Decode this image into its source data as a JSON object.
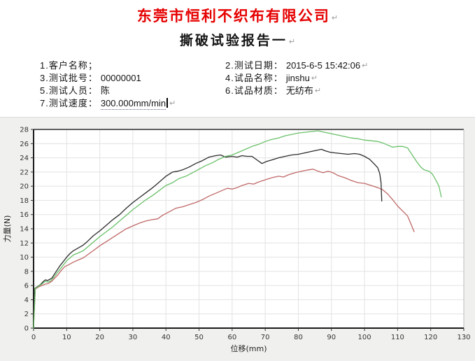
{
  "header": {
    "company_title": "东莞市恒利不织布有限公司",
    "company_color": "#e60000",
    "report_title": "撕破试验报告一",
    "pilcrow": "↵"
  },
  "info": {
    "rows": [
      {
        "left": {
          "label": "1.客户名称；",
          "value": ""
        },
        "right": {
          "label": "2.测试日期：",
          "value": "2015-6-5 15:42:06"
        }
      },
      {
        "left": {
          "label": "3.测试批号：",
          "value": "00000001"
        },
        "right": {
          "label": "4.试品名称：",
          "value": "jinshu"
        }
      },
      {
        "left": {
          "label": "5.测试人员：",
          "value": "陈"
        },
        "right": {
          "label": "6.试品材质：",
          "value": "无纺布"
        }
      },
      {
        "left": {
          "label": "7.测试速度：",
          "value": "300.000mm/min"
        }
      }
    ]
  },
  "chart_data": {
    "type": "line",
    "xlabel": "位移(mm)",
    "ylabel": "力量(N)",
    "xlim": [
      0,
      130
    ],
    "ylim": [
      0,
      28
    ],
    "xticks": [
      0,
      10,
      20,
      30,
      40,
      50,
      60,
      70,
      80,
      90,
      100,
      110,
      120,
      130
    ],
    "yticks": [
      0,
      2,
      4,
      6,
      8,
      10,
      12,
      14,
      16,
      18,
      20,
      22,
      24,
      26,
      28
    ],
    "grid": true,
    "grid_color": "#e3e3e3",
    "plot_bg": "#ffffff",
    "background": "#f0f1ef",
    "tick_color": "#333333",
    "legend": "none",
    "series": [
      {
        "name": "series-1-red",
        "color": "#c06868",
        "points": [
          [
            0,
            0
          ],
          [
            0.5,
            5.5
          ],
          [
            1.5,
            5.8
          ],
          [
            2.5,
            6.0
          ],
          [
            3.5,
            6.2
          ],
          [
            4.5,
            6.3
          ],
          [
            5.5,
            6.6
          ],
          [
            6.5,
            7.1
          ],
          [
            7.5,
            7.6
          ],
          [
            8.5,
            8.2
          ],
          [
            9.5,
            8.7
          ],
          [
            10.5,
            8.9
          ],
          [
            12,
            9.3
          ],
          [
            13.5,
            9.6
          ],
          [
            15,
            9.9
          ],
          [
            16.5,
            10.4
          ],
          [
            18,
            10.9
          ],
          [
            20,
            11.6
          ],
          [
            22,
            12.2
          ],
          [
            24,
            12.8
          ],
          [
            26,
            13.4
          ],
          [
            28,
            14.0
          ],
          [
            30,
            14.4
          ],
          [
            32,
            14.8
          ],
          [
            34,
            15.1
          ],
          [
            36,
            15.3
          ],
          [
            37.5,
            15.4
          ],
          [
            39,
            15.9
          ],
          [
            41,
            16.4
          ],
          [
            43,
            16.9
          ],
          [
            45,
            17.1
          ],
          [
            47,
            17.4
          ],
          [
            49,
            17.7
          ],
          [
            51,
            18.1
          ],
          [
            53,
            18.6
          ],
          [
            55,
            19.0
          ],
          [
            57,
            19.4
          ],
          [
            58.5,
            19.7
          ],
          [
            60,
            19.6
          ],
          [
            61.5,
            19.8
          ],
          [
            63,
            20.1
          ],
          [
            65,
            20.4
          ],
          [
            66.5,
            20.3
          ],
          [
            68,
            20.6
          ],
          [
            70,
            20.9
          ],
          [
            72,
            21.2
          ],
          [
            74,
            21.4
          ],
          [
            75.5,
            21.3
          ],
          [
            77,
            21.6
          ],
          [
            79,
            21.9
          ],
          [
            81,
            22.1
          ],
          [
            83,
            22.3
          ],
          [
            84.5,
            22.4
          ],
          [
            86,
            22.1
          ],
          [
            87.5,
            21.9
          ],
          [
            89,
            22.1
          ],
          [
            90.5,
            21.9
          ],
          [
            92,
            21.5
          ],
          [
            94,
            21.2
          ],
          [
            96,
            20.8
          ],
          [
            98,
            20.5
          ],
          [
            100,
            20.4
          ],
          [
            102,
            20.1
          ],
          [
            104,
            19.8
          ],
          [
            105.5,
            19.5
          ],
          [
            107,
            18.9
          ],
          [
            108.5,
            18.1
          ],
          [
            110,
            17.2
          ],
          [
            111.5,
            16.5
          ],
          [
            113,
            15.8
          ],
          [
            114,
            14.7
          ],
          [
            115,
            13.6
          ]
        ]
      },
      {
        "name": "series-2-black",
        "color": "#2b2b2b",
        "points": [
          [
            0,
            0
          ],
          [
            0.4,
            5.6
          ],
          [
            1,
            5.8
          ],
          [
            2,
            6.1
          ],
          [
            3,
            6.6
          ],
          [
            3.6,
            6.8
          ],
          [
            4.2,
            6.7
          ],
          [
            5,
            6.9
          ],
          [
            5.6,
            7.1
          ],
          [
            7,
            8.1
          ],
          [
            8,
            8.8
          ],
          [
            9,
            9.4
          ],
          [
            10,
            10.0
          ],
          [
            11,
            10.5
          ],
          [
            12,
            10.9
          ],
          [
            13.5,
            11.3
          ],
          [
            15,
            11.7
          ],
          [
            16,
            12.1
          ],
          [
            18,
            13.0
          ],
          [
            20,
            13.7
          ],
          [
            22,
            14.5
          ],
          [
            24,
            15.3
          ],
          [
            26,
            16.0
          ],
          [
            28,
            16.9
          ],
          [
            30,
            17.7
          ],
          [
            32,
            18.4
          ],
          [
            34,
            19.1
          ],
          [
            36,
            19.8
          ],
          [
            38,
            20.6
          ],
          [
            40,
            21.4
          ],
          [
            42,
            22.0
          ],
          [
            43.5,
            22.1
          ],
          [
            45,
            22.3
          ],
          [
            47,
            22.7
          ],
          [
            49,
            23.2
          ],
          [
            51,
            23.6
          ],
          [
            53,
            24.1
          ],
          [
            55,
            24.3
          ],
          [
            56.5,
            24.4
          ],
          [
            58,
            24.1
          ],
          [
            60,
            24.2
          ],
          [
            61.5,
            24.1
          ],
          [
            63,
            24.3
          ],
          [
            64.5,
            24.2
          ],
          [
            66,
            24.2
          ],
          [
            67.5,
            23.7
          ],
          [
            69,
            23.2
          ],
          [
            70.5,
            23.5
          ],
          [
            72,
            23.7
          ],
          [
            74,
            24.0
          ],
          [
            76,
            24.2
          ],
          [
            78,
            24.4
          ],
          [
            80,
            24.5
          ],
          [
            82,
            24.7
          ],
          [
            84,
            24.9
          ],
          [
            86,
            25.1
          ],
          [
            87,
            25.2
          ],
          [
            88,
            25.0
          ],
          [
            89.5,
            24.8
          ],
          [
            91,
            24.7
          ],
          [
            93,
            24.6
          ],
          [
            95,
            24.5
          ],
          [
            97,
            24.6
          ],
          [
            98.5,
            24.5
          ],
          [
            100,
            24.2
          ],
          [
            101.5,
            23.8
          ],
          [
            103,
            23.1
          ],
          [
            104,
            22.6
          ],
          [
            104.6,
            21.8
          ],
          [
            105,
            20.5
          ],
          [
            105.2,
            17.9
          ]
        ]
      },
      {
        "name": "series-3-green",
        "color": "#69c069",
        "points": [
          [
            0,
            0
          ],
          [
            0.5,
            5.6
          ],
          [
            1.5,
            5.9
          ],
          [
            2.5,
            6.2
          ],
          [
            3.5,
            6.6
          ],
          [
            4.2,
            6.5
          ],
          [
            5,
            6.6
          ],
          [
            6,
            7.1
          ],
          [
            7,
            7.7
          ],
          [
            8,
            8.3
          ],
          [
            9,
            8.9
          ],
          [
            10,
            9.5
          ],
          [
            11,
            9.9
          ],
          [
            12,
            10.3
          ],
          [
            13.5,
            10.6
          ],
          [
            15,
            10.9
          ],
          [
            16,
            11.3
          ],
          [
            18,
            12.1
          ],
          [
            20,
            12.9
          ],
          [
            22,
            13.6
          ],
          [
            24,
            14.3
          ],
          [
            26,
            15.1
          ],
          [
            28,
            15.9
          ],
          [
            30,
            16.7
          ],
          [
            32,
            17.4
          ],
          [
            34,
            18.1
          ],
          [
            36,
            18.7
          ],
          [
            38,
            19.4
          ],
          [
            40,
            20.1
          ],
          [
            42,
            20.5
          ],
          [
            44,
            21.1
          ],
          [
            46,
            21.4
          ],
          [
            48,
            21.9
          ],
          [
            50,
            22.4
          ],
          [
            52,
            22.9
          ],
          [
            54,
            23.3
          ],
          [
            56,
            23.8
          ],
          [
            58,
            24.2
          ],
          [
            60,
            24.4
          ],
          [
            62,
            24.8
          ],
          [
            64,
            25.2
          ],
          [
            66,
            25.6
          ],
          [
            68,
            25.9
          ],
          [
            70,
            26.3
          ],
          [
            72,
            26.6
          ],
          [
            74,
            26.8
          ],
          [
            76,
            27.1
          ],
          [
            78,
            27.3
          ],
          [
            80,
            27.5
          ],
          [
            82,
            27.6
          ],
          [
            84,
            27.7
          ],
          [
            86,
            27.8
          ],
          [
            88,
            27.6
          ],
          [
            90,
            27.4
          ],
          [
            92,
            27.2
          ],
          [
            94,
            27.0
          ],
          [
            96,
            26.8
          ],
          [
            98,
            26.7
          ],
          [
            100,
            26.5
          ],
          [
            102,
            26.4
          ],
          [
            104,
            26.3
          ],
          [
            105.5,
            26.1
          ],
          [
            107,
            25.8
          ],
          [
            108.5,
            25.5
          ],
          [
            110,
            25.6
          ],
          [
            111.5,
            25.6
          ],
          [
            113,
            25.4
          ],
          [
            114,
            24.7
          ],
          [
            115,
            24.0
          ],
          [
            116,
            23.3
          ],
          [
            117,
            22.7
          ],
          [
            118,
            22.3
          ],
          [
            119.5,
            22.1
          ],
          [
            120.5,
            21.7
          ],
          [
            121.5,
            20.9
          ],
          [
            122.5,
            20.0
          ],
          [
            123.2,
            18.5
          ]
        ]
      }
    ]
  }
}
